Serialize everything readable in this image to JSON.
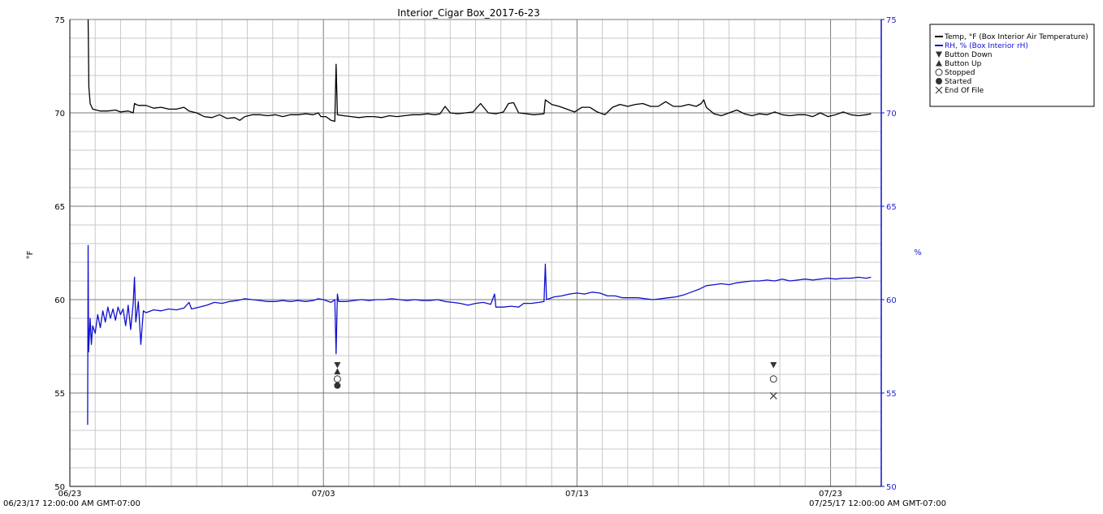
{
  "chart_data": {
    "type": "line",
    "title": "Interior_Cigar Box_2017-6-23",
    "ylabel_left": "°F",
    "ylabel_right": "%",
    "ylim_left": [
      50,
      75
    ],
    "ylim_right": [
      50,
      75
    ],
    "y_ticks": [
      "50",
      "55",
      "60",
      "65",
      "70",
      "75"
    ],
    "xlim_days": [
      0,
      32
    ],
    "x_ticks": [
      {
        "day": 0,
        "label": "06/23"
      },
      {
        "day": 10,
        "label": "07/03"
      },
      {
        "day": 20,
        "label": "07/13"
      },
      {
        "day": 30,
        "label": "07/23"
      }
    ],
    "x_start_label": "06/23/17 12:00:00 AM GMT-07:00",
    "x_end_label": "07/25/17 12:00:00 AM GMT-07:00",
    "grid": true,
    "legend_position": "top-right",
    "colors": {
      "temp": "#000000",
      "rh": "#1010d0",
      "marker": "#333333"
    },
    "series": [
      {
        "name": "Temp, °F (Box Interior Air Temperature)",
        "color": "#000000",
        "points": [
          [
            0.72,
            75.0
          ],
          [
            0.75,
            71.4
          ],
          [
            0.8,
            70.5
          ],
          [
            0.9,
            70.2
          ],
          [
            1.2,
            70.1
          ],
          [
            1.5,
            70.1
          ],
          [
            1.8,
            70.15
          ],
          [
            2.0,
            70.05
          ],
          [
            2.3,
            70.1
          ],
          [
            2.5,
            70.0
          ],
          [
            2.55,
            70.5
          ],
          [
            2.7,
            70.4
          ],
          [
            3.0,
            70.4
          ],
          [
            3.3,
            70.25
          ],
          [
            3.6,
            70.3
          ],
          [
            3.9,
            70.2
          ],
          [
            4.2,
            70.2
          ],
          [
            4.5,
            70.3
          ],
          [
            4.7,
            70.1
          ],
          [
            5.0,
            70.0
          ],
          [
            5.3,
            69.8
          ],
          [
            5.6,
            69.75
          ],
          [
            5.9,
            69.9
          ],
          [
            6.2,
            69.7
          ],
          [
            6.5,
            69.75
          ],
          [
            6.7,
            69.6
          ],
          [
            6.9,
            69.8
          ],
          [
            7.2,
            69.9
          ],
          [
            7.5,
            69.9
          ],
          [
            7.8,
            69.85
          ],
          [
            8.1,
            69.9
          ],
          [
            8.4,
            69.8
          ],
          [
            8.7,
            69.9
          ],
          [
            9.0,
            69.9
          ],
          [
            9.3,
            69.95
          ],
          [
            9.6,
            69.9
          ],
          [
            9.8,
            70.0
          ],
          [
            9.9,
            69.8
          ],
          [
            10.1,
            69.8
          ],
          [
            10.3,
            69.6
          ],
          [
            10.45,
            69.55
          ],
          [
            10.5,
            72.6
          ],
          [
            10.55,
            69.9
          ],
          [
            10.8,
            69.85
          ],
          [
            11.1,
            69.8
          ],
          [
            11.4,
            69.75
          ],
          [
            11.7,
            69.8
          ],
          [
            12.0,
            69.8
          ],
          [
            12.3,
            69.75
          ],
          [
            12.6,
            69.85
          ],
          [
            12.9,
            69.8
          ],
          [
            13.2,
            69.85
          ],
          [
            13.5,
            69.9
          ],
          [
            13.8,
            69.9
          ],
          [
            14.1,
            69.95
          ],
          [
            14.4,
            69.9
          ],
          [
            14.6,
            69.95
          ],
          [
            14.8,
            70.35
          ],
          [
            15.0,
            70.0
          ],
          [
            15.3,
            69.95
          ],
          [
            15.6,
            70.0
          ],
          [
            15.9,
            70.05
          ],
          [
            16.2,
            70.5
          ],
          [
            16.5,
            70.0
          ],
          [
            16.8,
            69.95
          ],
          [
            17.1,
            70.05
          ],
          [
            17.3,
            70.5
          ],
          [
            17.5,
            70.55
          ],
          [
            17.7,
            70.0
          ],
          [
            18.0,
            69.95
          ],
          [
            18.3,
            69.9
          ],
          [
            18.7,
            69.95
          ],
          [
            18.75,
            70.7
          ],
          [
            19.0,
            70.45
          ],
          [
            19.3,
            70.35
          ],
          [
            19.6,
            70.2
          ],
          [
            19.9,
            70.05
          ],
          [
            20.2,
            70.3
          ],
          [
            20.5,
            70.3
          ],
          [
            20.8,
            70.05
          ],
          [
            21.1,
            69.9
          ],
          [
            21.4,
            70.3
          ],
          [
            21.7,
            70.45
          ],
          [
            22.0,
            70.35
          ],
          [
            22.3,
            70.45
          ],
          [
            22.6,
            70.5
          ],
          [
            22.9,
            70.35
          ],
          [
            23.2,
            70.35
          ],
          [
            23.5,
            70.6
          ],
          [
            23.8,
            70.35
          ],
          [
            24.1,
            70.35
          ],
          [
            24.4,
            70.45
          ],
          [
            24.7,
            70.35
          ],
          [
            24.9,
            70.5
          ],
          [
            25.0,
            70.7
          ],
          [
            25.1,
            70.3
          ],
          [
            25.4,
            69.95
          ],
          [
            25.7,
            69.85
          ],
          [
            26.0,
            70.0
          ],
          [
            26.3,
            70.15
          ],
          [
            26.6,
            69.95
          ],
          [
            26.9,
            69.85
          ],
          [
            27.2,
            69.95
          ],
          [
            27.5,
            69.9
          ],
          [
            27.8,
            70.05
          ],
          [
            28.1,
            69.9
          ],
          [
            28.4,
            69.85
          ],
          [
            28.7,
            69.9
          ],
          [
            29.0,
            69.9
          ],
          [
            29.3,
            69.8
          ],
          [
            29.6,
            70.0
          ],
          [
            29.9,
            69.8
          ],
          [
            30.2,
            69.9
          ],
          [
            30.5,
            70.05
          ],
          [
            30.8,
            69.9
          ],
          [
            31.1,
            69.85
          ],
          [
            31.4,
            69.9
          ],
          [
            31.6,
            69.95
          ]
        ]
      },
      {
        "name": "RH, % (Box Interior rH)",
        "color": "#1010d0",
        "points": [
          [
            0.7,
            53.3
          ],
          [
            0.72,
            62.9
          ],
          [
            0.74,
            57.2
          ],
          [
            0.8,
            59.0
          ],
          [
            0.85,
            57.6
          ],
          [
            0.9,
            58.6
          ],
          [
            1.0,
            58.2
          ],
          [
            1.1,
            59.2
          ],
          [
            1.2,
            58.5
          ],
          [
            1.3,
            59.4
          ],
          [
            1.4,
            58.8
          ],
          [
            1.5,
            59.6
          ],
          [
            1.6,
            59.0
          ],
          [
            1.7,
            59.5
          ],
          [
            1.8,
            58.9
          ],
          [
            1.9,
            59.6
          ],
          [
            2.0,
            59.2
          ],
          [
            2.1,
            59.5
          ],
          [
            2.2,
            58.6
          ],
          [
            2.3,
            59.7
          ],
          [
            2.4,
            58.4
          ],
          [
            2.5,
            59.8
          ],
          [
            2.55,
            61.2
          ],
          [
            2.6,
            58.8
          ],
          [
            2.7,
            59.9
          ],
          [
            2.8,
            57.6
          ],
          [
            2.9,
            59.4
          ],
          [
            3.0,
            59.3
          ],
          [
            3.3,
            59.45
          ],
          [
            3.6,
            59.4
          ],
          [
            3.9,
            59.5
          ],
          [
            4.2,
            59.45
          ],
          [
            4.5,
            59.55
          ],
          [
            4.7,
            59.85
          ],
          [
            4.8,
            59.5
          ],
          [
            5.1,
            59.6
          ],
          [
            5.4,
            59.7
          ],
          [
            5.7,
            59.85
          ],
          [
            6.0,
            59.8
          ],
          [
            6.3,
            59.9
          ],
          [
            6.6,
            59.95
          ],
          [
            6.9,
            60.05
          ],
          [
            7.2,
            60.0
          ],
          [
            7.5,
            59.95
          ],
          [
            7.8,
            59.9
          ],
          [
            8.1,
            59.9
          ],
          [
            8.4,
            59.95
          ],
          [
            8.7,
            59.9
          ],
          [
            9.0,
            59.95
          ],
          [
            9.3,
            59.9
          ],
          [
            9.6,
            59.95
          ],
          [
            9.8,
            60.05
          ],
          [
            10.0,
            60.0
          ],
          [
            10.3,
            59.85
          ],
          [
            10.45,
            60.0
          ],
          [
            10.5,
            57.1
          ],
          [
            10.55,
            60.3
          ],
          [
            10.6,
            59.9
          ],
          [
            10.9,
            59.9
          ],
          [
            11.2,
            59.95
          ],
          [
            11.5,
            60.0
          ],
          [
            11.8,
            59.95
          ],
          [
            12.1,
            60.0
          ],
          [
            12.4,
            60.0
          ],
          [
            12.7,
            60.05
          ],
          [
            13.0,
            60.0
          ],
          [
            13.3,
            59.95
          ],
          [
            13.6,
            60.0
          ],
          [
            13.9,
            59.95
          ],
          [
            14.2,
            59.95
          ],
          [
            14.5,
            60.0
          ],
          [
            14.8,
            59.9
          ],
          [
            15.1,
            59.85
          ],
          [
            15.4,
            59.8
          ],
          [
            15.7,
            59.7
          ],
          [
            16.0,
            59.8
          ],
          [
            16.3,
            59.85
          ],
          [
            16.6,
            59.75
          ],
          [
            16.75,
            60.3
          ],
          [
            16.8,
            59.6
          ],
          [
            17.1,
            59.6
          ],
          [
            17.4,
            59.65
          ],
          [
            17.7,
            59.6
          ],
          [
            17.9,
            59.8
          ],
          [
            18.2,
            59.8
          ],
          [
            18.5,
            59.85
          ],
          [
            18.7,
            59.9
          ],
          [
            18.75,
            61.9
          ],
          [
            18.8,
            60.0
          ],
          [
            19.1,
            60.15
          ],
          [
            19.4,
            60.2
          ],
          [
            19.7,
            60.3
          ],
          [
            20.0,
            60.35
          ],
          [
            20.3,
            60.3
          ],
          [
            20.6,
            60.4
          ],
          [
            20.9,
            60.35
          ],
          [
            21.2,
            60.2
          ],
          [
            21.5,
            60.2
          ],
          [
            21.8,
            60.1
          ],
          [
            22.1,
            60.1
          ],
          [
            22.4,
            60.1
          ],
          [
            22.7,
            60.05
          ],
          [
            23.0,
            60.0
          ],
          [
            23.3,
            60.05
          ],
          [
            23.6,
            60.1
          ],
          [
            23.9,
            60.15
          ],
          [
            24.2,
            60.25
          ],
          [
            24.5,
            60.4
          ],
          [
            24.8,
            60.55
          ],
          [
            25.1,
            60.75
          ],
          [
            25.4,
            60.8
          ],
          [
            25.7,
            60.85
          ],
          [
            26.0,
            60.8
          ],
          [
            26.3,
            60.9
          ],
          [
            26.6,
            60.95
          ],
          [
            26.9,
            61.0
          ],
          [
            27.2,
            61.0
          ],
          [
            27.5,
            61.05
          ],
          [
            27.8,
            61.0
          ],
          [
            28.1,
            61.1
          ],
          [
            28.4,
            61.0
          ],
          [
            28.7,
            61.05
          ],
          [
            29.0,
            61.1
          ],
          [
            29.3,
            61.05
          ],
          [
            29.6,
            61.1
          ],
          [
            29.9,
            61.15
          ],
          [
            30.2,
            61.1
          ],
          [
            30.5,
            61.15
          ],
          [
            30.8,
            61.15
          ],
          [
            31.1,
            61.2
          ],
          [
            31.4,
            61.15
          ],
          [
            31.6,
            61.2
          ]
        ]
      }
    ],
    "events": [
      {
        "type": "Button Down",
        "day": 10.55,
        "y": 56.5
      },
      {
        "type": "Button Up",
        "day": 10.55,
        "y": 56.15
      },
      {
        "type": "Stopped",
        "day": 10.55,
        "y": 55.75
      },
      {
        "type": "Started",
        "day": 10.55,
        "y": 55.4
      },
      {
        "type": "Button Down",
        "day": 27.75,
        "y": 56.5
      },
      {
        "type": "Stopped",
        "day": 27.75,
        "y": 55.75
      },
      {
        "type": "End Of File",
        "day": 27.75,
        "y": 54.85
      }
    ],
    "legend": [
      {
        "label": "Temp, °F (Box Interior Air Temperature)",
        "symbol": "line",
        "color": "#000000"
      },
      {
        "label": "RH, % (Box Interior rH)",
        "symbol": "line",
        "color": "#1010d0"
      },
      {
        "label": "Button Down",
        "symbol": "tri-down",
        "color": "#333333"
      },
      {
        "label": "Button Up",
        "symbol": "tri-up",
        "color": "#333333"
      },
      {
        "label": "Stopped",
        "symbol": "circle-open",
        "color": "#333333"
      },
      {
        "label": "Started",
        "symbol": "circle-filled",
        "color": "#333333"
      },
      {
        "label": "End Of File",
        "symbol": "cross",
        "color": "#333333"
      }
    ]
  }
}
